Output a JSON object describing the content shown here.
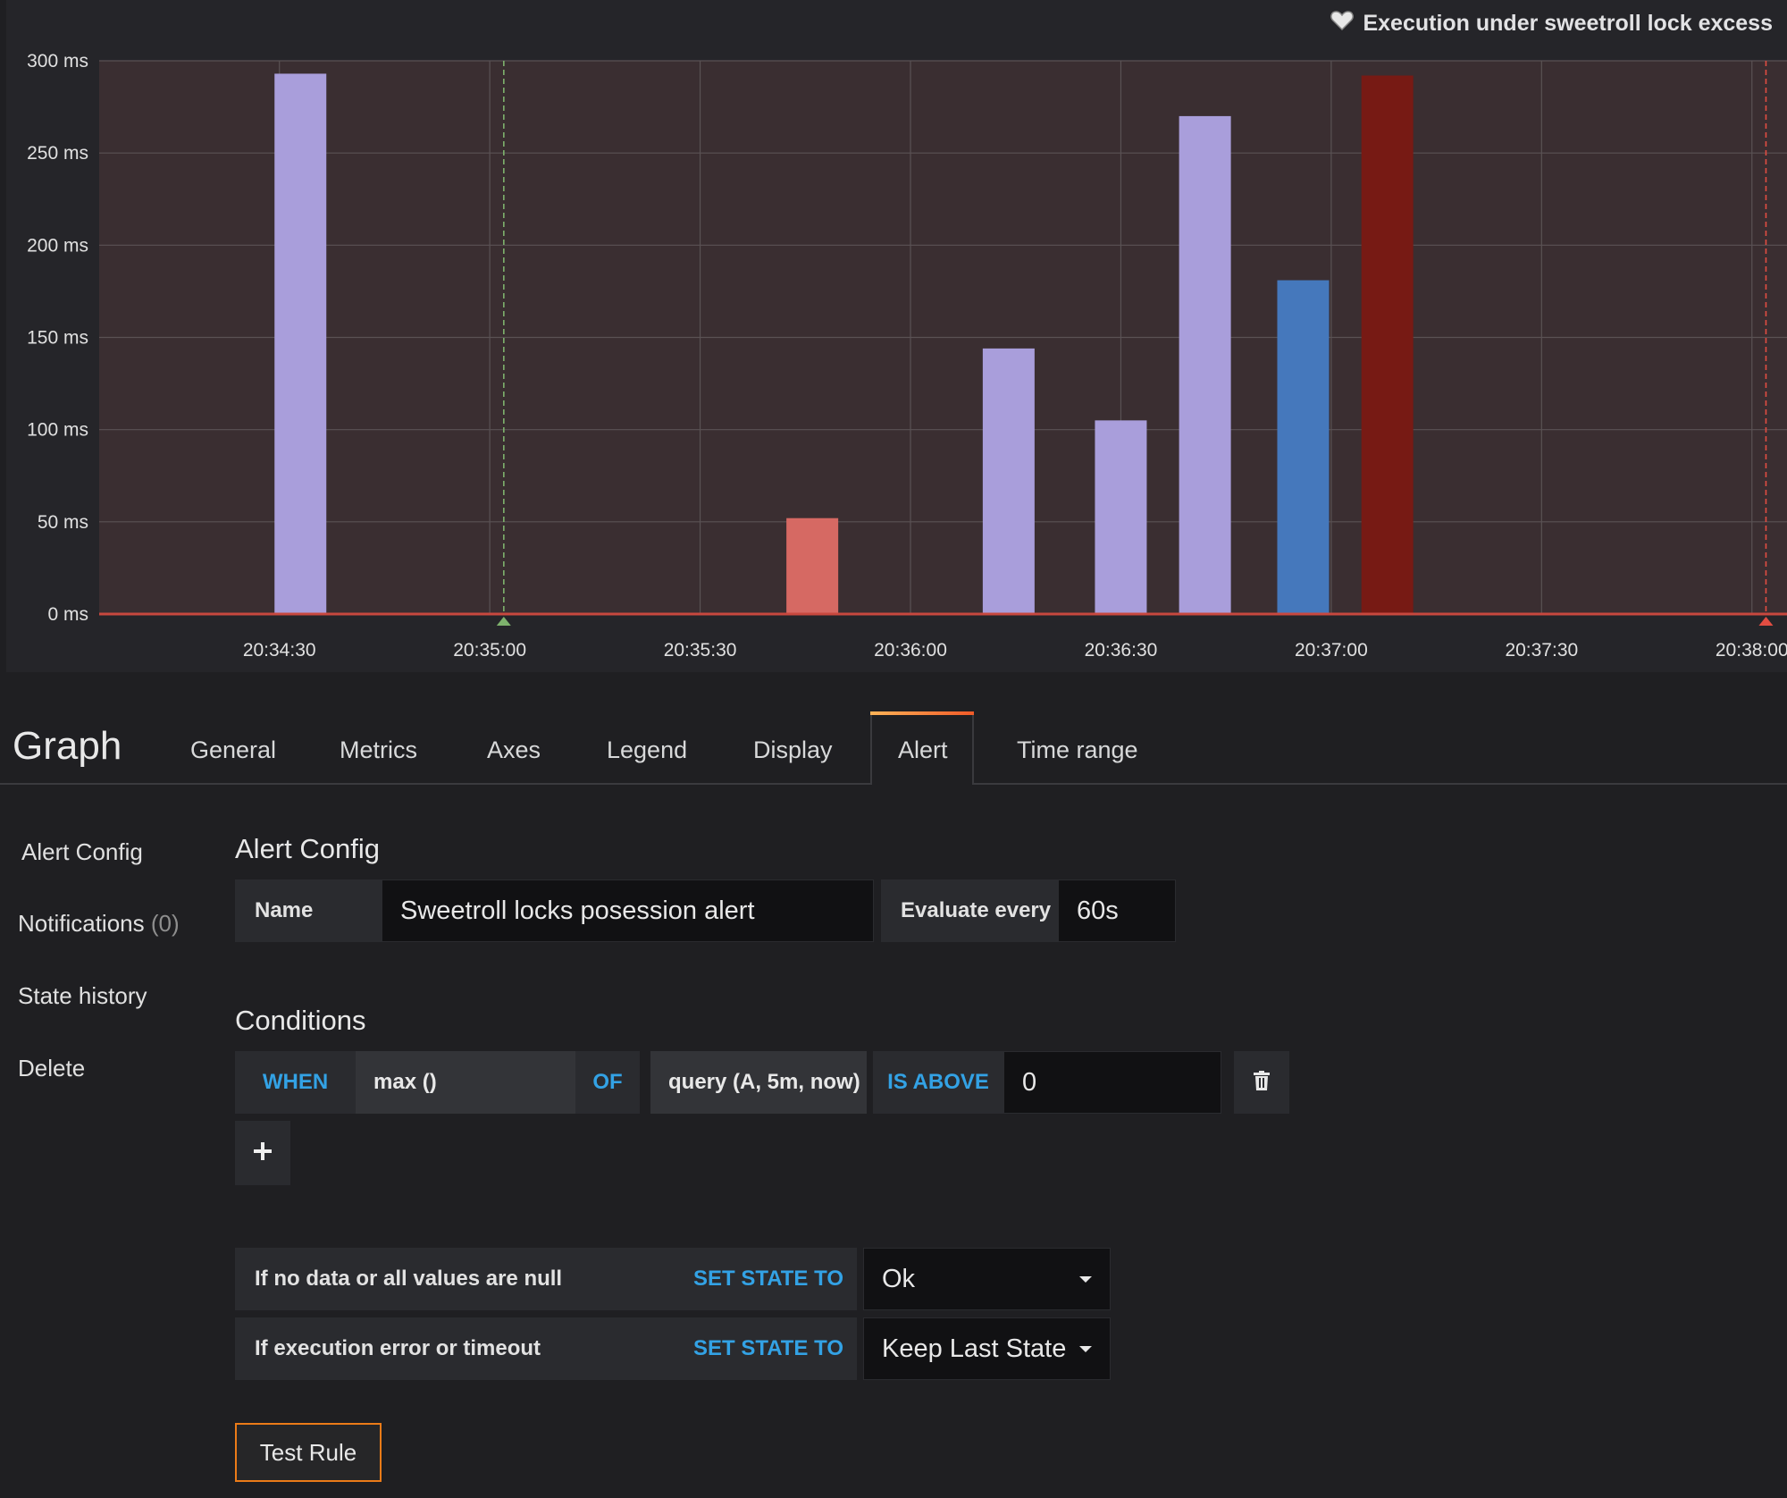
{
  "panel": {
    "title": "Execution under sweetroll lock excess",
    "title_icon": "heart-icon"
  },
  "chart_data": {
    "type": "bar",
    "title": "Execution under sweetroll lock excess",
    "y_ticks": [
      "0 ms",
      "50 ms",
      "100 ms",
      "150 ms",
      "200 ms",
      "250 ms",
      "300 ms"
    ],
    "x_ticks": [
      "20:34:30",
      "20:35:00",
      "20:35:30",
      "20:36:00",
      "20:36:30",
      "20:37:00",
      "20:37:30",
      "20:38:00"
    ],
    "ylim": [
      0,
      300
    ],
    "xlim_seconds_after_20_34_00": [
      4.3,
      245
    ],
    "grid": true,
    "threshold_ms": 0,
    "bars": [
      {
        "time": "20:34:33",
        "value": 293,
        "color": "#a99edb"
      },
      {
        "time": "20:35:46",
        "value": 52,
        "color": "#d66963"
      },
      {
        "time": "20:36:14",
        "value": 144,
        "color": "#a99edb"
      },
      {
        "time": "20:36:30",
        "value": 105,
        "color": "#a99edb"
      },
      {
        "time": "20:36:42",
        "value": 270,
        "color": "#a99edb"
      },
      {
        "time": "20:36:56",
        "value": 181,
        "color": "#4578bc"
      },
      {
        "time": "20:37:08",
        "value": 292,
        "color": "#771a14"
      }
    ],
    "annotations": [
      {
        "time": "20:35:02",
        "state": "ok",
        "color": "#7eb26d"
      },
      {
        "time": "20:38:02",
        "state": "alerting",
        "color": "#e24d42"
      }
    ]
  },
  "editor": {
    "title": "Graph",
    "tabs": [
      "General",
      "Metrics",
      "Axes",
      "Legend",
      "Display",
      "Alert",
      "Time range"
    ],
    "active_tab": "Alert"
  },
  "sidenav": {
    "alert_config": "Alert Config",
    "notifications": "Notifications",
    "notifications_count": "(0)",
    "state_history": "State history",
    "delete": "Delete"
  },
  "alert_config": {
    "section_title": "Alert Config",
    "name_label": "Name",
    "name_value": "Sweetroll locks posession alert",
    "evaluate_label": "Evaluate every",
    "evaluate_value": "60s"
  },
  "conditions": {
    "section_title": "Conditions",
    "when": "WHEN",
    "reducer": "max ()",
    "of": "OF",
    "query": "query (A, 5m, now)",
    "evaluator": "IS ABOVE",
    "threshold": "0",
    "delete_icon": "trash-icon",
    "add_icon": "plus-icon"
  },
  "no_data": {
    "label": "If no data or all values are null",
    "set_state": "SET STATE TO",
    "value": "Ok"
  },
  "exec_error": {
    "label": "If execution error or timeout",
    "set_state": "SET STATE TO",
    "value": "Keep Last State"
  },
  "test_rule": {
    "label": "Test Rule"
  }
}
